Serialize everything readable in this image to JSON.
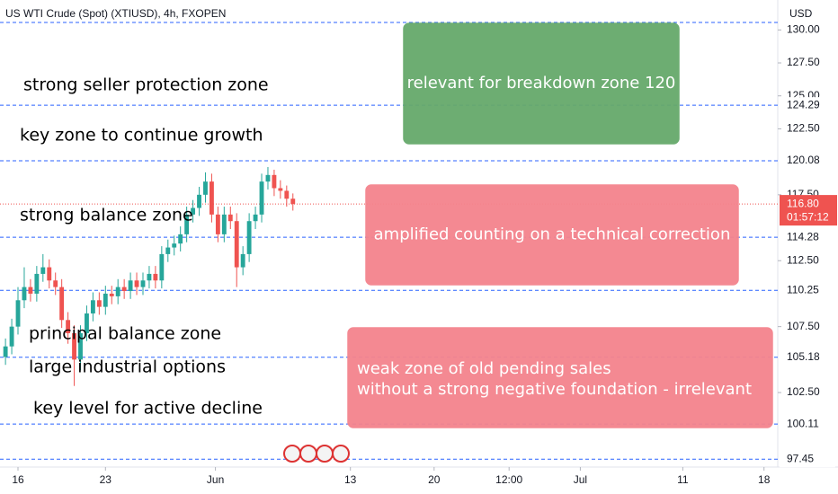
{
  "chart_data": {
    "type": "candlestick",
    "title": "US WTI Crude (Spot) (XTIUSD), 4h, FXOPEN",
    "currency": "USD",
    "up_color": "#26a69a",
    "down_color": "#ef5350",
    "level_color": "#2962ff",
    "ylim": [
      96.85,
      132.27
    ],
    "xlim": [
      -1.44,
      60.8
    ],
    "yticks": [
      {
        "value": 130,
        "label": "130.00"
      },
      {
        "value": 127.5,
        "label": "127.50"
      },
      {
        "value": 125,
        "label": "125.00"
      },
      {
        "value": 122.5,
        "label": "122.50"
      },
      {
        "value": 117.5,
        "label": "117.50"
      },
      {
        "value": 112.5,
        "label": "112.50"
      },
      {
        "value": 107.5,
        "label": "107.50"
      },
      {
        "value": 102.5,
        "label": "102.50"
      }
    ],
    "xticks": [
      {
        "value": 0,
        "label": "16"
      },
      {
        "value": 7,
        "label": "23"
      },
      {
        "value": 15.8,
        "label": "Jun"
      },
      {
        "value": 26.6,
        "label": "13"
      },
      {
        "value": 33.3,
        "label": "20"
      },
      {
        "value": 39.3,
        "label": "12:00"
      },
      {
        "value": 45,
        "label": "Jul"
      },
      {
        "value": 53.2,
        "label": "11"
      },
      {
        "value": 59.7,
        "label": "18"
      }
    ],
    "levels": [
      130.57,
      124.29,
      120.08,
      114.28,
      110.25,
      105.18,
      100.11,
      97.45
    ],
    "level_labels": [
      null,
      "124.29",
      "120.08",
      "114.28",
      "110.25",
      "105.18",
      "100.11",
      "97.45"
    ],
    "last_price": {
      "value": 116.8,
      "label": "116.80"
    },
    "countdown": "01:57:12",
    "candles": {
      "x": [
        -1,
        -0.5,
        0,
        0.5,
        1,
        1.5,
        2,
        2.5,
        3,
        3.5,
        4,
        4.5,
        5,
        5.5,
        6,
        6.5,
        7,
        7.5,
        8,
        8.5,
        9,
        9.5,
        10,
        10.5,
        11,
        11.5,
        12,
        12.5,
        13,
        13.5,
        14,
        14.5,
        15,
        15.5,
        16,
        16.5,
        17,
        17.5,
        18,
        18.5,
        19,
        19.5,
        20,
        20.5,
        21,
        21.5,
        22
      ],
      "open": [
        105.2,
        106,
        107.5,
        109.5,
        110.5,
        110,
        111.5,
        112,
        111,
        110.5,
        108,
        107,
        105,
        107,
        108.5,
        109.5,
        109,
        110,
        109.8,
        110.5,
        110.2,
        111,
        110.5,
        111,
        111.5,
        111,
        113,
        113.5,
        113.8,
        114.5,
        116,
        116.5,
        117.5,
        118.5,
        116,
        114.5,
        116,
        115.5,
        112,
        113,
        115.5,
        116,
        118.5,
        119,
        118,
        117.8,
        117.2
      ],
      "high": [
        106.6,
        108.1,
        110.5,
        112,
        111.1,
        112.1,
        113,
        112.6,
        111.6,
        111.1,
        108.6,
        107.6,
        107.6,
        109.1,
        110.1,
        110.1,
        110.6,
        110.6,
        111.1,
        111.1,
        111.6,
        111.6,
        111.6,
        112.1,
        112.1,
        113.6,
        114.1,
        114.4,
        115.1,
        116.6,
        117.1,
        118.1,
        119.2,
        119.1,
        116.6,
        116.6,
        116.6,
        116.1,
        113.6,
        116.1,
        116.6,
        119.1,
        119.6,
        119.4,
        118.6,
        118.2,
        117.6
      ],
      "low": [
        104.6,
        105.4,
        106.9,
        108.9,
        109.4,
        109.4,
        110.9,
        110.4,
        109.9,
        107.4,
        106.2,
        103,
        104.2,
        106.4,
        107.9,
        108.4,
        108.4,
        109.2,
        109.2,
        109.6,
        109.6,
        109.9,
        109.9,
        110.4,
        110.4,
        110.4,
        112.4,
        112.9,
        113.2,
        113.9,
        115.4,
        115.9,
        116.9,
        115.4,
        113.9,
        113.9,
        114.9,
        110.5,
        111.4,
        112.4,
        114.9,
        115.4,
        117.9,
        117.4,
        117.2,
        116.6,
        116.3
      ],
      "close": [
        106,
        107.5,
        109.5,
        110.5,
        110,
        111.5,
        112,
        111,
        110.5,
        108,
        107,
        105,
        107,
        108.5,
        109.5,
        109,
        110,
        109.8,
        110.5,
        110.2,
        111,
        110.5,
        111,
        111.5,
        111,
        113,
        113.5,
        113.8,
        114.5,
        116,
        116.5,
        117.5,
        118.5,
        116,
        114.5,
        116,
        115.5,
        112,
        113,
        115.5,
        116,
        118.5,
        119,
        118,
        117.8,
        117.2,
        116.8
      ]
    },
    "annotations": [
      "strong seller protection zone",
      "key zone to continue growth",
      "strong balance zone",
      "principal balance zone",
      "large industrial options",
      "key level for active decline"
    ],
    "boxes": [
      {
        "color": "#66a96b",
        "lines": [
          "relevant for breakdown zone 120"
        ]
      },
      {
        "color": "#f4838d",
        "lines": [
          "amplified counting on a technical correction"
        ]
      },
      {
        "color": "#f4838d",
        "lines": [
          "weak zone of  old pending sales",
          "without a strong negative foundation - irrelevant"
        ]
      }
    ]
  }
}
